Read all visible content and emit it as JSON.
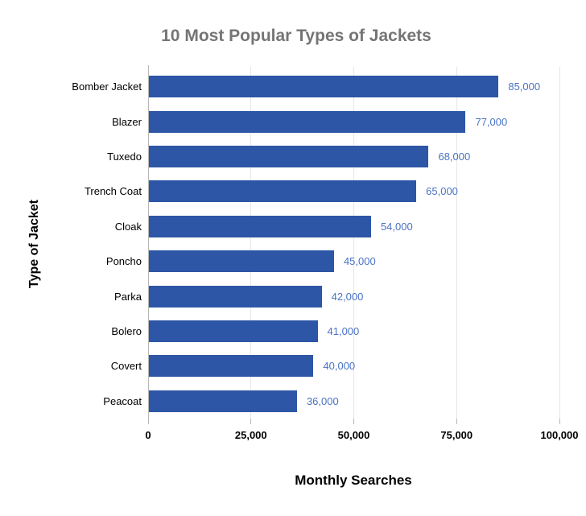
{
  "title": "10 Most Popular Types of Jackets",
  "chart_data": {
    "type": "bar",
    "orientation": "horizontal",
    "title": "10 Most Popular Types of Jackets",
    "categories": [
      "Bomber Jacket",
      "Blazer",
      "Tuxedo",
      "Trench Coat",
      "Cloak",
      "Poncho",
      "Parka",
      "Bolero",
      "Covert",
      "Peacoat"
    ],
    "values": [
      85000,
      77000,
      68000,
      65000,
      54000,
      45000,
      42000,
      41000,
      40000,
      36000
    ],
    "value_labels": [
      "85,000",
      "77,000",
      "68,000",
      "65,000",
      "54,000",
      "45,000",
      "42,000",
      "41,000",
      "40,000",
      "36,000"
    ],
    "xlabel": "Monthly Searches",
    "ylabel": "Type of Jacket",
    "xlim": [
      0,
      100000
    ],
    "x_ticks": [
      0,
      25000,
      50000,
      75000,
      100000
    ],
    "x_tick_labels": [
      "0",
      "25,000",
      "50,000",
      "75,000",
      "100,000"
    ],
    "grid": true,
    "legend": false,
    "colors": {
      "bar": "#2d56a6",
      "value_label": "#4a72c4",
      "title": "#757575",
      "axis_text": "#000000",
      "gridline": "#e6e6e6",
      "axis_line": "#b7b7b7",
      "background": "#ffffff"
    }
  }
}
